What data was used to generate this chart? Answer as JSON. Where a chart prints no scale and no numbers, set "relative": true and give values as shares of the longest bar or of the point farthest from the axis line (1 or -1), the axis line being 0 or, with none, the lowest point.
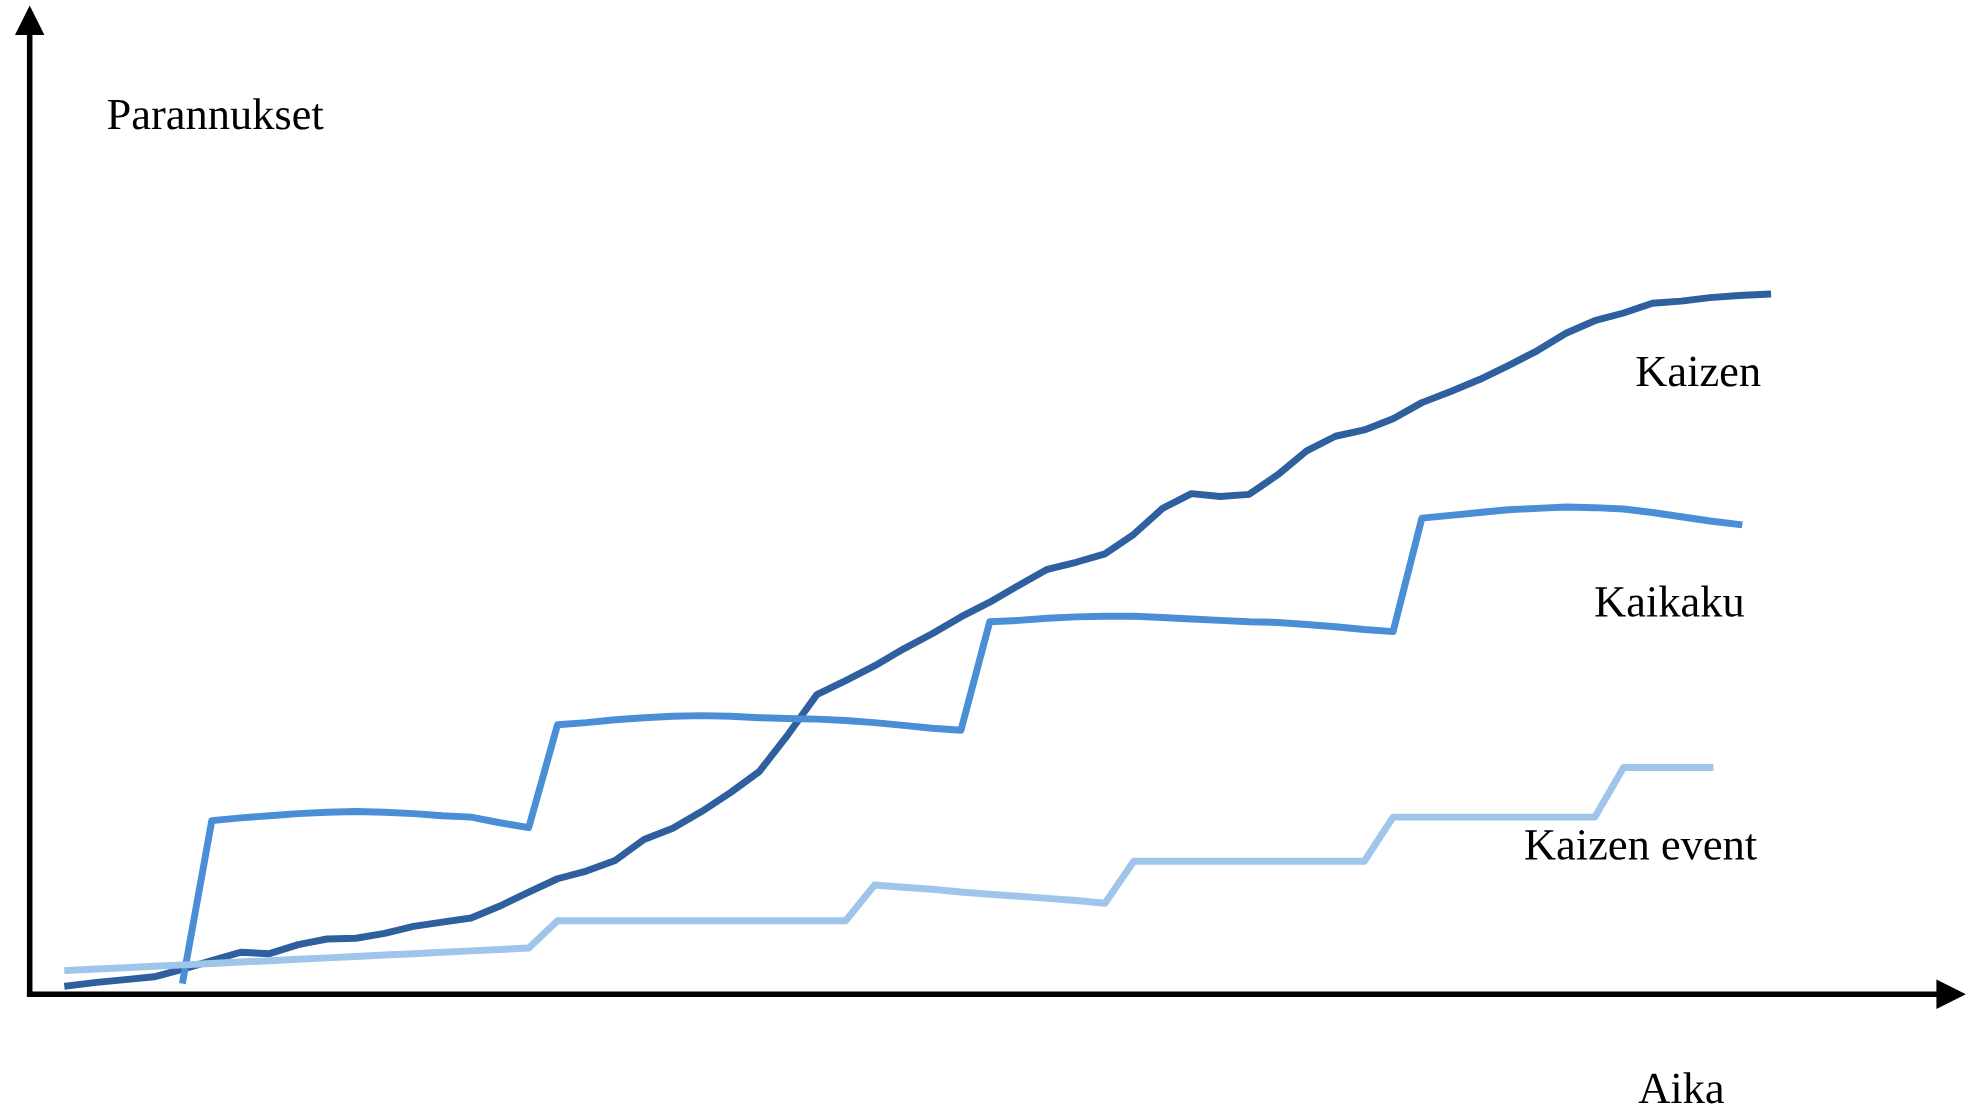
{
  "chart_data": {
    "type": "line",
    "relative": true,
    "xlabel": "Aika",
    "ylabel": "Parannukset",
    "legend": false,
    "marker": "none",
    "line_style": "solid",
    "categories": [
      null,
      null,
      null,
      null,
      null,
      null,
      null,
      null,
      null,
      null,
      null,
      null,
      null,
      null,
      null,
      null,
      null,
      null,
      null,
      null,
      null,
      null,
      null,
      null,
      null,
      null,
      null,
      null,
      null,
      null,
      null,
      null,
      null,
      null,
      null,
      null,
      null,
      null,
      null,
      null,
      null,
      null,
      null,
      null,
      null,
      null,
      null,
      null,
      null,
      null,
      null,
      null,
      null,
      null,
      null,
      null,
      null,
      null,
      null,
      null
    ],
    "series": [
      {
        "name": "Kaizen",
        "color": "#2e5f9e",
        "values": [
          0.012,
          0.017,
          0.021,
          0.025,
          0.036,
          0.048,
          0.06,
          0.058,
          0.071,
          0.079,
          0.08,
          0.087,
          0.097,
          0.103,
          0.109,
          0.126,
          0.146,
          0.165,
          0.176,
          0.191,
          0.221,
          0.237,
          0.261,
          0.288,
          0.318,
          0.371,
          0.428,
          0.448,
          0.469,
          0.493,
          0.515,
          0.539,
          0.56,
          0.584,
          0.607,
          0.617,
          0.629,
          0.657,
          0.694,
          0.715,
          0.711,
          0.714,
          0.742,
          0.776,
          0.797,
          0.806,
          0.822,
          0.845,
          0.861,
          0.878,
          0.898,
          0.919,
          0.944,
          0.962,
          0.973,
          0.987,
          0.99,
          0.995,
          0.998,
          1.0
        ]
      },
      {
        "name": "Kaikaku",
        "color": "#4a8ed6",
        "values": [
          null,
          null,
          null,
          null,
          0.02,
          0.248,
          0.252,
          0.255,
          0.258,
          0.26,
          0.261,
          0.26,
          0.258,
          0.255,
          0.253,
          0.245,
          0.238,
          0.385,
          0.388,
          0.392,
          0.395,
          0.397,
          0.398,
          0.397,
          0.395,
          0.394,
          0.393,
          0.391,
          0.388,
          0.384,
          0.38,
          0.377,
          0.532,
          0.534,
          0.537,
          0.539,
          0.54,
          0.54,
          0.538,
          0.536,
          0.534,
          0.532,
          0.531,
          0.528,
          0.525,
          0.521,
          0.518,
          0.68,
          0.684,
          0.688,
          0.692,
          0.694,
          0.696,
          0.695,
          0.693,
          0.688,
          0.682,
          0.676,
          0.671,
          null
        ]
      },
      {
        "name": "Kaizen event",
        "color": "#9fc5ea",
        "values": [
          0.034,
          0.036,
          0.038,
          0.04,
          0.042,
          0.044,
          0.046,
          0.048,
          0.05,
          0.052,
          0.054,
          0.056,
          0.058,
          0.06,
          0.062,
          0.064,
          0.066,
          0.105,
          0.105,
          0.105,
          0.105,
          0.105,
          0.105,
          0.105,
          0.105,
          0.105,
          0.105,
          0.105,
          0.156,
          0.153,
          0.15,
          0.146,
          0.143,
          0.14,
          0.137,
          0.134,
          0.13,
          0.19,
          0.19,
          0.19,
          0.19,
          0.19,
          0.19,
          0.19,
          0.19,
          0.19,
          0.253,
          0.253,
          0.253,
          0.253,
          0.253,
          0.253,
          0.253,
          0.253,
          0.324,
          0.324,
          0.324,
          0.324,
          null,
          null
        ]
      }
    ]
  }
}
